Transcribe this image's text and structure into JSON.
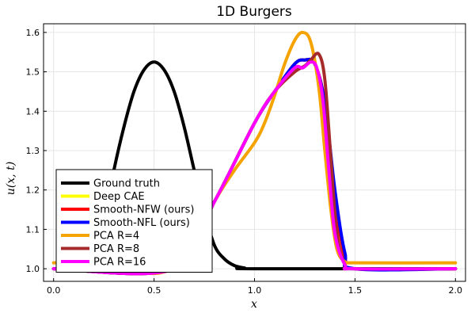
{
  "chart_data": {
    "type": "line",
    "title": "1D Burgers",
    "xlabel": "x",
    "ylabel": "u(x, t)",
    "xlim": [
      -0.05,
      2.05
    ],
    "ylim": [
      0.968,
      1.622
    ],
    "xticks": [
      0.0,
      0.5,
      1.0,
      1.5,
      2.0
    ],
    "xtick_labels": [
      "0.0",
      "0.5",
      "1.0",
      "1.5",
      "2.0"
    ],
    "yticks": [
      1.0,
      1.1,
      1.2,
      1.3,
      1.4,
      1.5,
      1.6
    ],
    "ytick_labels": [
      "1.0",
      "1.1",
      "1.2",
      "1.3",
      "1.4",
      "1.5",
      "1.6"
    ],
    "grid": true,
    "legend_position": "bottom-left",
    "series": [
      {
        "name": "Ground truth",
        "color": "#000000",
        "x": [
          0.0,
          0.05,
          0.1,
          0.15,
          0.2,
          0.25,
          0.3,
          0.35,
          0.4,
          0.45,
          0.5,
          0.55,
          0.6,
          0.65,
          0.7,
          0.75,
          0.8,
          0.85,
          0.9,
          0.95,
          1.0,
          2.0
        ],
        "y": [
          1.0,
          1.0,
          1.0,
          1.0,
          1.02,
          1.12,
          1.25,
          1.36,
          1.45,
          1.505,
          1.525,
          1.505,
          1.45,
          1.36,
          1.25,
          1.145,
          1.06,
          1.025,
          1.008,
          1.002,
          1.0,
          1.0
        ]
      },
      {
        "name": "Deep CAE",
        "color": "#ffff00",
        "x": [
          0.0,
          0.6,
          0.8,
          1.0,
          1.1,
          1.2,
          1.25,
          1.3,
          1.35,
          1.4,
          1.45,
          1.5,
          2.0
        ],
        "y": [
          1.0,
          1.0,
          1.17,
          1.37,
          1.45,
          1.52,
          1.53,
          1.52,
          1.42,
          1.18,
          1.03,
          1.0,
          1.0
        ]
      },
      {
        "name": "Smooth-NFW (ours)",
        "color": "#ff0000",
        "x": [
          0.0,
          0.6,
          0.8,
          1.0,
          1.1,
          1.2,
          1.25,
          1.3,
          1.35,
          1.4,
          1.45,
          1.5,
          2.0
        ],
        "y": [
          1.0,
          1.0,
          1.17,
          1.37,
          1.45,
          1.52,
          1.53,
          1.52,
          1.42,
          1.18,
          1.03,
          1.0,
          1.0
        ]
      },
      {
        "name": "Smooth-NFL (ours)",
        "color": "#0000ff",
        "x": [
          0.0,
          0.6,
          0.8,
          1.0,
          1.1,
          1.2,
          1.25,
          1.3,
          1.35,
          1.4,
          1.45,
          1.5,
          2.0
        ],
        "y": [
          1.0,
          1.0,
          1.17,
          1.37,
          1.45,
          1.52,
          1.53,
          1.52,
          1.42,
          1.2,
          1.04,
          1.0,
          1.0
        ]
      },
      {
        "name": "PCA R=4",
        "color": "#f4a300",
        "x": [
          0.0,
          0.1,
          0.2,
          0.3,
          0.4,
          0.45,
          0.5,
          0.55,
          0.6,
          0.7,
          0.8,
          0.9,
          1.0,
          1.05,
          1.1,
          1.15,
          1.2,
          1.24,
          1.28,
          1.32,
          1.35,
          1.38,
          1.41,
          1.45,
          1.5,
          2.0
        ],
        "y": [
          1.015,
          1.015,
          1.012,
          1.005,
          0.995,
          0.99,
          0.988,
          0.992,
          1.005,
          1.06,
          1.17,
          1.25,
          1.32,
          1.37,
          1.44,
          1.52,
          1.58,
          1.6,
          1.575,
          1.46,
          1.3,
          1.15,
          1.05,
          1.018,
          1.015,
          1.015
        ]
      },
      {
        "name": "PCA R=8",
        "color": "#a52a2a",
        "x": [
          0.0,
          0.6,
          0.8,
          1.0,
          1.1,
          1.2,
          1.25,
          1.28,
          1.32,
          1.35,
          1.38,
          1.41,
          1.45,
          1.5,
          2.0
        ],
        "y": [
          1.0,
          1.0,
          1.17,
          1.37,
          1.45,
          1.5,
          1.515,
          1.53,
          1.545,
          1.48,
          1.28,
          1.09,
          1.01,
          1.0,
          1.0
        ]
      },
      {
        "name": "PCA R=16",
        "color": "#ff00ff",
        "x": [
          0.0,
          0.6,
          0.8,
          1.0,
          1.1,
          1.2,
          1.24,
          1.28,
          1.31,
          1.34,
          1.37,
          1.4,
          1.45,
          1.5,
          2.0
        ],
        "y": [
          1.0,
          1.0,
          1.17,
          1.37,
          1.45,
          1.51,
          1.51,
          1.525,
          1.51,
          1.43,
          1.25,
          1.09,
          1.01,
          1.0,
          1.0
        ]
      }
    ]
  }
}
